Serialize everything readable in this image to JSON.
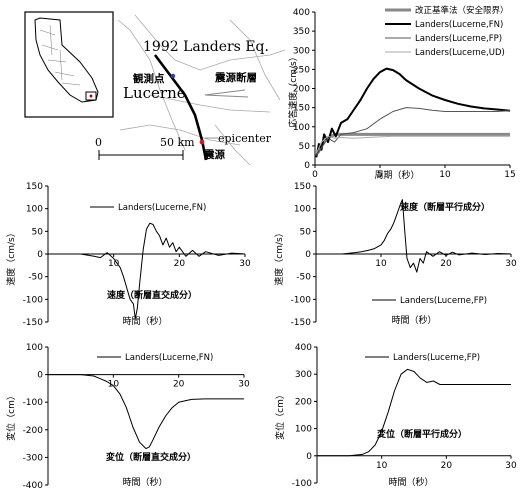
{
  "map": {
    "event_label": "1992 Landers Eq.",
    "station_label_jp": "観測点",
    "station_label": "Lucerne",
    "fault_label": "震源断層",
    "epicenter_label": "epicenter",
    "epicenter_label_jp": "震源",
    "scale_zero": "0",
    "scale_label": "50 km"
  },
  "chart_data": [
    {
      "id": "spectrum",
      "type": "line",
      "title": "",
      "xlabel": "周期（秒）",
      "ylabel": "応答速度（cm/s）",
      "xlim": [
        0,
        15
      ],
      "ylim": [
        0,
        400
      ],
      "xticks": [
        0,
        5,
        10,
        15
      ],
      "yticks": [
        0,
        50,
        100,
        150,
        200,
        250,
        300,
        350,
        400
      ],
      "legend_position": "top-right",
      "series": [
        {
          "name": "改正基準法（安全限界）",
          "color": "#888888",
          "width": 3,
          "x": [
            0.2,
            0.5,
            0.8,
            1.2,
            1.6,
            2,
            3,
            5,
            8,
            10,
            12,
            15
          ],
          "y": [
            30,
            50,
            65,
            75,
            80,
            80,
            80,
            80,
            80,
            80,
            80,
            80
          ]
        },
        {
          "name": "Landers(Lucerne,FN)",
          "color": "#000000",
          "width": 2,
          "x": [
            0.1,
            0.3,
            0.5,
            0.7,
            1.0,
            1.3,
            1.6,
            2.0,
            2.5,
            3.0,
            3.5,
            4.0,
            4.5,
            5.0,
            5.5,
            6.0,
            6.5,
            7.0,
            8.0,
            9.0,
            10,
            11,
            12,
            13,
            14,
            15
          ],
          "y": [
            20,
            55,
            40,
            80,
            60,
            95,
            75,
            110,
            120,
            145,
            170,
            200,
            225,
            243,
            252,
            248,
            238,
            222,
            200,
            182,
            170,
            160,
            153,
            148,
            145,
            142
          ]
        },
        {
          "name": "Landers(Lucerne,FP)",
          "color": "#555555",
          "width": 1,
          "x": [
            0.1,
            0.5,
            1.0,
            1.5,
            2.0,
            3.0,
            4.0,
            5.0,
            6.0,
            7.0,
            8.0,
            9.0,
            10,
            12,
            14,
            15
          ],
          "y": [
            25,
            45,
            70,
            60,
            80,
            85,
            95,
            120,
            140,
            150,
            148,
            143,
            140,
            140,
            140,
            142
          ]
        },
        {
          "name": "Landers(Lucerne,UD)",
          "color": "#aaaaaa",
          "width": 1,
          "x": [
            0.1,
            0.5,
            1.0,
            1.5,
            2.0,
            3.0,
            4.0,
            6.0,
            8.0,
            10,
            12,
            15
          ],
          "y": [
            30,
            60,
            75,
            70,
            72,
            70,
            72,
            75,
            75,
            75,
            75,
            75
          ]
        }
      ]
    },
    {
      "id": "vel_fn",
      "type": "line",
      "title": "速度（断層直交成分）",
      "xlabel": "時間（秒）",
      "ylabel": "速度（cm/s）",
      "xlim": [
        0,
        30
      ],
      "ylim": [
        -150,
        150
      ],
      "xticks": [
        0,
        10,
        20,
        30
      ],
      "yticks": [
        -150,
        -100,
        -50,
        0,
        50,
        100,
        150
      ],
      "series": [
        {
          "name": "Landers(Lucerne,FN)",
          "color": "#000000",
          "width": 1,
          "x": [
            0,
            5,
            7,
            8,
            9,
            10,
            10.5,
            11,
            11.5,
            12,
            12.5,
            13,
            13.3,
            13.6,
            14,
            14.5,
            15,
            15.5,
            16,
            16.5,
            17,
            17.5,
            18,
            18.5,
            19,
            19.5,
            20,
            21,
            22,
            23,
            24,
            26,
            28,
            30
          ],
          "y": [
            0,
            0,
            -5,
            -8,
            3,
            -10,
            -20,
            -30,
            -50,
            -75,
            -100,
            -110,
            -143,
            -120,
            -60,
            10,
            55,
            68,
            65,
            50,
            40,
            20,
            35,
            15,
            25,
            5,
            15,
            -5,
            8,
            -5,
            5,
            -3,
            2,
            0
          ]
        }
      ]
    },
    {
      "id": "vel_fp",
      "type": "line",
      "title": "速度（断層平行成分）",
      "xlabel": "時間（秒）",
      "ylabel": "速度（cm/s）",
      "xlim": [
        0,
        30
      ],
      "ylim": [
        -150,
        150
      ],
      "xticks": [
        0,
        10,
        20,
        30
      ],
      "yticks": [
        -150,
        -100,
        -50,
        0,
        50,
        100,
        150
      ],
      "series": [
        {
          "name": "Landers(Lucerne,FP)",
          "color": "#000000",
          "width": 1,
          "x": [
            0,
            4,
            6,
            7,
            8,
            9,
            10,
            10.5,
            11,
            11.5,
            12,
            12.5,
            13,
            13.3,
            13.6,
            14,
            14.5,
            15,
            15.5,
            16,
            16.5,
            17,
            18,
            19,
            20,
            21,
            22,
            24,
            26,
            28,
            30
          ],
          "y": [
            0,
            0,
            3,
            5,
            8,
            12,
            20,
            30,
            45,
            55,
            70,
            90,
            110,
            120,
            60,
            -10,
            -30,
            -20,
            -40,
            -10,
            -20,
            5,
            -5,
            5,
            -3,
            4,
            -2,
            2,
            -1,
            1,
            0
          ]
        }
      ]
    },
    {
      "id": "disp_fn",
      "type": "line",
      "title": "変位（断層直交成分）",
      "xlabel": "時間（秒）",
      "ylabel": "変位（cm）",
      "xlim": [
        0,
        30
      ],
      "ylim": [
        -400,
        100
      ],
      "xticks": [
        0,
        10,
        20,
        30
      ],
      "yticks": [
        -400,
        -300,
        -200,
        -100,
        0,
        100
      ],
      "series": [
        {
          "name": "Landers(Lucerne,FN)",
          "color": "#000000",
          "width": 1,
          "x": [
            0,
            5,
            7,
            8,
            9,
            10,
            11,
            12,
            13,
            14,
            15,
            15.5,
            16,
            17,
            18,
            19,
            20,
            21,
            22,
            24,
            26,
            28,
            30
          ],
          "y": [
            0,
            0,
            -5,
            -15,
            -25,
            -40,
            -70,
            -120,
            -190,
            -245,
            -268,
            -262,
            -240,
            -190,
            -150,
            -120,
            -100,
            -95,
            -90,
            -88,
            -88,
            -88,
            -88
          ]
        }
      ]
    },
    {
      "id": "disp_fp",
      "type": "line",
      "title": "変位（断層平行成分）",
      "xlabel": "時間（秒）",
      "ylabel": "変位（cm）",
      "xlim": [
        0,
        30
      ],
      "ylim": [
        -100,
        400
      ],
      "xticks": [
        0,
        10,
        20,
        30
      ],
      "yticks": [
        -100,
        0,
        100,
        200,
        300,
        400
      ],
      "series": [
        {
          "name": "Landers(Lucerne,FP)",
          "color": "#000000",
          "width": 1,
          "x": [
            0,
            5,
            7,
            8,
            9,
            10,
            11,
            12,
            13,
            14,
            15,
            16,
            17,
            18,
            19,
            20,
            22,
            24,
            26,
            28,
            30
          ],
          "y": [
            0,
            0,
            5,
            15,
            40,
            90,
            160,
            240,
            300,
            318,
            310,
            285,
            270,
            275,
            262,
            262,
            262,
            262,
            262,
            262,
            262
          ]
        }
      ]
    }
  ]
}
